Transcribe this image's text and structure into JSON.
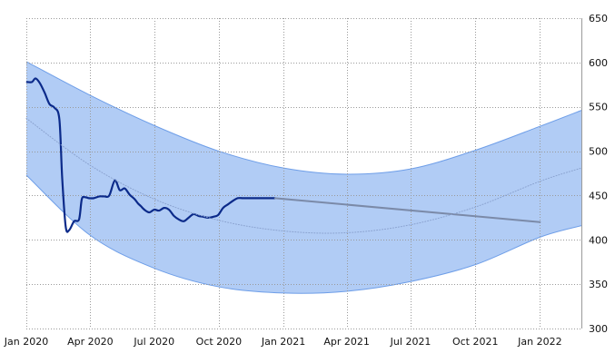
{
  "chart_data": {
    "type": "line",
    "title": "",
    "xlabel": "",
    "ylabel": "",
    "x_tick_labels": [
      "Jan 2020",
      "Apr 2020",
      "Jul 2020",
      "Oct 2020",
      "Jan 2021",
      "Apr 2021",
      "Jul 2021",
      "Oct 2021",
      "Jan 2022"
    ],
    "x_tick_dates": [
      "2020-01-01",
      "2020-04-01",
      "2020-07-01",
      "2020-10-01",
      "2021-01-01",
      "2021-04-01",
      "2021-07-01",
      "2021-10-01",
      "2022-01-01"
    ],
    "y_ticks": [
      300,
      350,
      400,
      450,
      500,
      550,
      600,
      650
    ],
    "xlim": [
      "2020-01-01",
      "2022-03-01"
    ],
    "ylim": [
      300,
      650
    ],
    "y_axis_position": "right",
    "grid": true,
    "legend": "none",
    "colors": {
      "price": "#0b2a8a",
      "forecast": "#7b8aa8",
      "band_fill": "#a9c6f4",
      "band_edge": "#6e9ee8",
      "trend": "#8aa2cf"
    },
    "series": [
      {
        "role": "price",
        "style": "solid-thick",
        "x": [
          "2020-01-02",
          "2020-01-09",
          "2020-01-14",
          "2020-01-20",
          "2020-01-27",
          "2020-02-03",
          "2020-02-10",
          "2020-02-17",
          "2020-02-21",
          "2020-02-26",
          "2020-03-02",
          "2020-03-09",
          "2020-03-16",
          "2020-03-20",
          "2020-03-25",
          "2020-03-30",
          "2020-04-06",
          "2020-04-14",
          "2020-04-21",
          "2020-04-28",
          "2020-05-06",
          "2020-05-13",
          "2020-05-20",
          "2020-05-27",
          "2020-06-03",
          "2020-06-08",
          "2020-06-12",
          "2020-06-17",
          "2020-06-24",
          "2020-07-01",
          "2020-07-08",
          "2020-07-15",
          "2020-07-22",
          "2020-07-29",
          "2020-08-05",
          "2020-08-12",
          "2020-08-19",
          "2020-08-26",
          "2020-09-02",
          "2020-09-09",
          "2020-09-16",
          "2020-09-23",
          "2020-09-30",
          "2020-10-07",
          "2020-10-14",
          "2020-10-21",
          "2020-10-28",
          "2020-11-04",
          "2020-11-11",
          "2020-11-18",
          "2020-11-25",
          "2020-12-02",
          "2020-12-09",
          "2020-12-16",
          "2020-12-20"
        ],
        "y": [
          578,
          578,
          582,
          577,
          566,
          553,
          549,
          536,
          470,
          415,
          411,
          421,
          423,
          446,
          448,
          447,
          447,
          449,
          449,
          450,
          467,
          456,
          458,
          451,
          446,
          441,
          438,
          434,
          431,
          434,
          433,
          436,
          434,
          427,
          423,
          421,
          425,
          429,
          427,
          426,
          425,
          426,
          428,
          436,
          440,
          444,
          447,
          447,
          447,
          447,
          447,
          447,
          447,
          447,
          447
        ]
      },
      {
        "role": "forecast",
        "style": "solid",
        "x": [
          "2020-12-20",
          "2022-01-01"
        ],
        "y": [
          447,
          420
        ]
      },
      {
        "role": "trend",
        "style": "dotted",
        "x": [
          "2020-01-01",
          "2020-04-01",
          "2020-07-01",
          "2020-10-01",
          "2021-01-01",
          "2021-04-01",
          "2021-07-01",
          "2021-10-01",
          "2022-01-01",
          "2022-03-01"
        ],
        "y": [
          537,
          484,
          446,
          422,
          410,
          408,
          417,
          437,
          466,
          481
        ]
      }
    ],
    "band": {
      "x": [
        "2020-01-01",
        "2020-04-01",
        "2020-07-01",
        "2020-10-01",
        "2021-01-01",
        "2021-04-01",
        "2021-07-01",
        "2021-10-01",
        "2022-01-01",
        "2022-03-01"
      ],
      "upper": [
        601,
        563,
        529,
        500,
        481,
        474,
        480,
        501,
        528,
        546
      ],
      "lower": [
        473,
        405,
        368,
        347,
        340,
        342,
        353,
        372,
        403,
        416
      ]
    }
  }
}
